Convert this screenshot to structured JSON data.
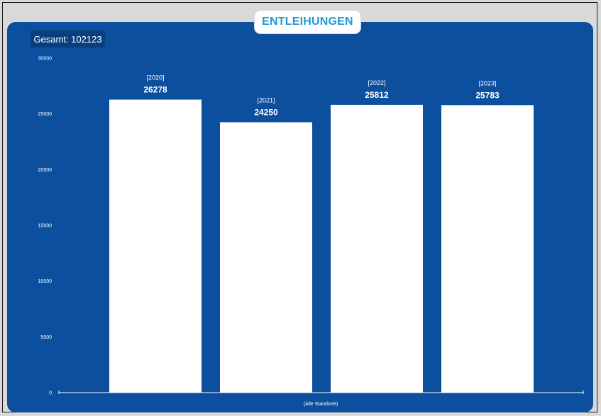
{
  "title": "ENTLEIHUNGEN",
  "total_label": "Gesamt: 102123",
  "colors": {
    "panel": "#0b4f9e",
    "bar": "#ffffff",
    "title_text": "#1e9ad6",
    "badge": "#0a3f7f"
  },
  "chart_data": {
    "type": "bar",
    "title": "ENTLEIHUNGEN",
    "xlabel": "(Alle Standorte)",
    "ylabel": "",
    "ylim": [
      0,
      30000
    ],
    "yticks": [
      0,
      5000,
      10000,
      15000,
      20000,
      25000,
      30000
    ],
    "grid": false,
    "categories": [
      "[2020]",
      "[2021]",
      "[2022]",
      "[2023]"
    ],
    "values": [
      26278,
      24250,
      25812,
      25783
    ]
  }
}
